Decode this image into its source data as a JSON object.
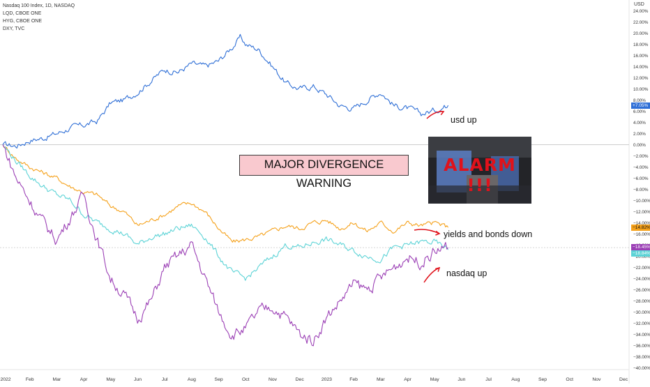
{
  "legend": {
    "items": [
      "Nasdaq 100 Index, 1D, NASDAQ",
      "LQD, CBOE ONE",
      "HYG, CBOE ONE",
      "DXY, TVC"
    ]
  },
  "currency_label": "USD",
  "annotations": {
    "warning": "MAJOR DIVERGENCE WARNING",
    "usd_up": "usd up",
    "yields_bonds_down": "yields and bonds down",
    "nasdaq_up": "nasdaq up",
    "alarm": "ALARM !!!"
  },
  "price_tags": {
    "dxy": "+7.05%",
    "lqd": "−14.82%",
    "ndx": "−18.45%",
    "hyg": "−18.84%"
  },
  "colors": {
    "dxy": "#2f6fd6",
    "lqd": "#f5a11a",
    "hyg": "#5cd3d6",
    "ndx": "#9b3fb5",
    "arrow": "#e0121b"
  },
  "chart_data": {
    "type": "line",
    "x_ticks": [
      "2022",
      "Feb",
      "Mar",
      "Apr",
      "May",
      "Jun",
      "Jul",
      "Aug",
      "Sep",
      "Oct",
      "Nov",
      "Dec",
      "2023",
      "Feb",
      "Mar",
      "Apr",
      "May",
      "Jun",
      "Jul",
      "Aug",
      "Sep",
      "Oct",
      "Nov",
      "Dec"
    ],
    "y_ticks": [
      24,
      22,
      20,
      18,
      16,
      14,
      12,
      10,
      8,
      6,
      4,
      2,
      0,
      -2,
      -4,
      -6,
      -8,
      -10,
      -12,
      -14,
      -16,
      -18,
      -20,
      -22,
      -24,
      -26,
      -28,
      -30,
      -32,
      -34,
      -36,
      -38,
      -40
    ],
    "y_tick_labels": [
      "24.00%",
      "22.00%",
      "20.00%",
      "18.00%",
      "16.00%",
      "14.00%",
      "12.00%",
      "10.00%",
      "8.00%",
      "6.00%",
      "4.00%",
      "2.00%",
      "0.00%",
      "−2.00%",
      "−4.00%",
      "−6.00%",
      "−8.00%",
      "−10.00%",
      "−12.00%",
      "−14.00%",
      "−16.00%",
      "−18.00%",
      "−20.00%",
      "−22.00%",
      "−24.00%",
      "−26.00%",
      "−28.00%",
      "−30.00%",
      "−32.00%",
      "−34.00%",
      "−36.00%",
      "−38.00%",
      "−40.00%"
    ],
    "ylim": [
      -41,
      25.5
    ],
    "xlim": [
      0,
      24
    ],
    "series": [
      {
        "name": "DXY, TVC",
        "color": "#2f6fd6",
        "x": [
          0,
          0.5,
          1,
          1.5,
          2,
          2.5,
          3,
          3.5,
          4,
          4.5,
          5,
          5.5,
          6,
          6.5,
          7,
          7.5,
          8,
          8.5,
          8.8,
          9,
          9.5,
          10,
          10.5,
          11,
          11.5,
          12,
          12.5,
          13,
          13.5,
          14,
          14.5,
          15,
          15.5,
          16,
          16.5
        ],
        "y": [
          0,
          -0.2,
          0.8,
          1.2,
          2.0,
          3.0,
          3.5,
          4.2,
          7.5,
          8.0,
          9.5,
          11.5,
          13.5,
          13.0,
          14.5,
          14.0,
          15.0,
          17.5,
          19.2,
          18.0,
          17.0,
          14.0,
          11.0,
          10.0,
          10.5,
          9.0,
          7.0,
          6.5,
          8.0,
          9.5,
          7.0,
          6.5,
          5.5,
          6.2,
          7.05
        ]
      },
      {
        "name": "LQD, CBOE ONE",
        "color": "#f5a11a",
        "x": [
          0,
          0.5,
          1,
          1.5,
          2,
          2.5,
          3,
          3.5,
          4,
          4.5,
          5,
          5.5,
          6,
          6.5,
          7,
          7.5,
          8,
          8.5,
          9,
          9.5,
          10,
          10.5,
          11,
          11.5,
          12,
          12.5,
          13,
          13.5,
          14,
          14.5,
          15,
          15.5,
          16,
          16.5
        ],
        "y": [
          0,
          -2.5,
          -4.0,
          -5.0,
          -6.0,
          -7.5,
          -8.5,
          -9.0,
          -11.0,
          -12.0,
          -14.5,
          -13.5,
          -12.5,
          -11.0,
          -10.5,
          -12.0,
          -15.0,
          -17.5,
          -17.0,
          -16.5,
          -15.5,
          -14.5,
          -15.0,
          -14.0,
          -13.5,
          -15.0,
          -14.0,
          -15.5,
          -14.0,
          -15.5,
          -14.0,
          -14.5,
          -14.0,
          -14.82
        ]
      },
      {
        "name": "HYG, CBOE ONE",
        "color": "#5cd3d6",
        "x": [
          0,
          0.5,
          1,
          1.5,
          2,
          2.5,
          3,
          3.5,
          4,
          4.5,
          5,
          5.5,
          6,
          6.5,
          7,
          7.5,
          8,
          8.5,
          9,
          9.5,
          10,
          10.5,
          11,
          11.5,
          12,
          12.5,
          13,
          13.5,
          14,
          14.5,
          15,
          15.5,
          16,
          16.5
        ],
        "y": [
          0,
          -3.0,
          -5.5,
          -7.5,
          -9.0,
          -10.0,
          -12.5,
          -14.0,
          -15.0,
          -16.0,
          -18.0,
          -16.5,
          -16.0,
          -15.0,
          -14.5,
          -16.5,
          -20.0,
          -23.0,
          -24.0,
          -22.0,
          -20.0,
          -18.0,
          -18.5,
          -17.5,
          -17.0,
          -18.0,
          -19.0,
          -20.0,
          -20.5,
          -18.5,
          -18.0,
          -17.5,
          -17.5,
          -18.84
        ]
      },
      {
        "name": "Nasdaq 100 Index, 1D, NASDAQ",
        "color": "#9b3fb5",
        "x": [
          0,
          0.5,
          1,
          1.5,
          2,
          2.5,
          3,
          3.5,
          4,
          4.5,
          5,
          5.5,
          6,
          6.5,
          7,
          7.5,
          8,
          8.5,
          9,
          9.5,
          10,
          10.5,
          11,
          11.5,
          12,
          12.5,
          13,
          13.5,
          14,
          14.5,
          15,
          15.5,
          16,
          16.5
        ],
        "y": [
          0,
          -6.0,
          -10.0,
          -14.0,
          -17.0,
          -13.0,
          -9.0,
          -17.0,
          -24.0,
          -27.0,
          -31.0,
          -28.0,
          -22.0,
          -20.0,
          -18.0,
          -24.0,
          -30.0,
          -34.0,
          -33.0,
          -30.0,
          -29.0,
          -31.0,
          -34.0,
          -35.0,
          -31.0,
          -28.0,
          -25.0,
          -26.0,
          -24.0,
          -22.0,
          -20.0,
          -21.0,
          -19.0,
          -18.45
        ]
      }
    ]
  }
}
